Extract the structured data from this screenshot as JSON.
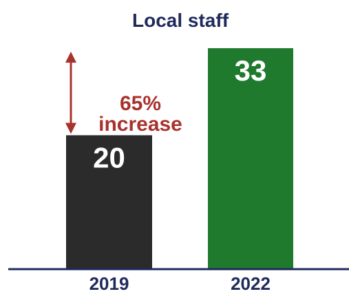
{
  "chart_data": {
    "type": "bar",
    "title": "Local staff",
    "categories": [
      "2019",
      "2022"
    ],
    "values": [
      20,
      33
    ],
    "xlabel": "",
    "ylabel": "",
    "ylim": [
      0,
      33
    ],
    "grid": false,
    "legend": "none",
    "annotation": {
      "lines": [
        "65%",
        "increase"
      ],
      "from_value": 20,
      "to_value": 33
    }
  },
  "colors": {
    "title": "#1f2a5c",
    "bar_2019": "#2b2b2b",
    "bar_2022": "#1f7a2e",
    "value_label": "#ffffff",
    "tick_label": "#1f2a5c",
    "axis": "#1f2a5c",
    "annotation": "#a8322d"
  }
}
